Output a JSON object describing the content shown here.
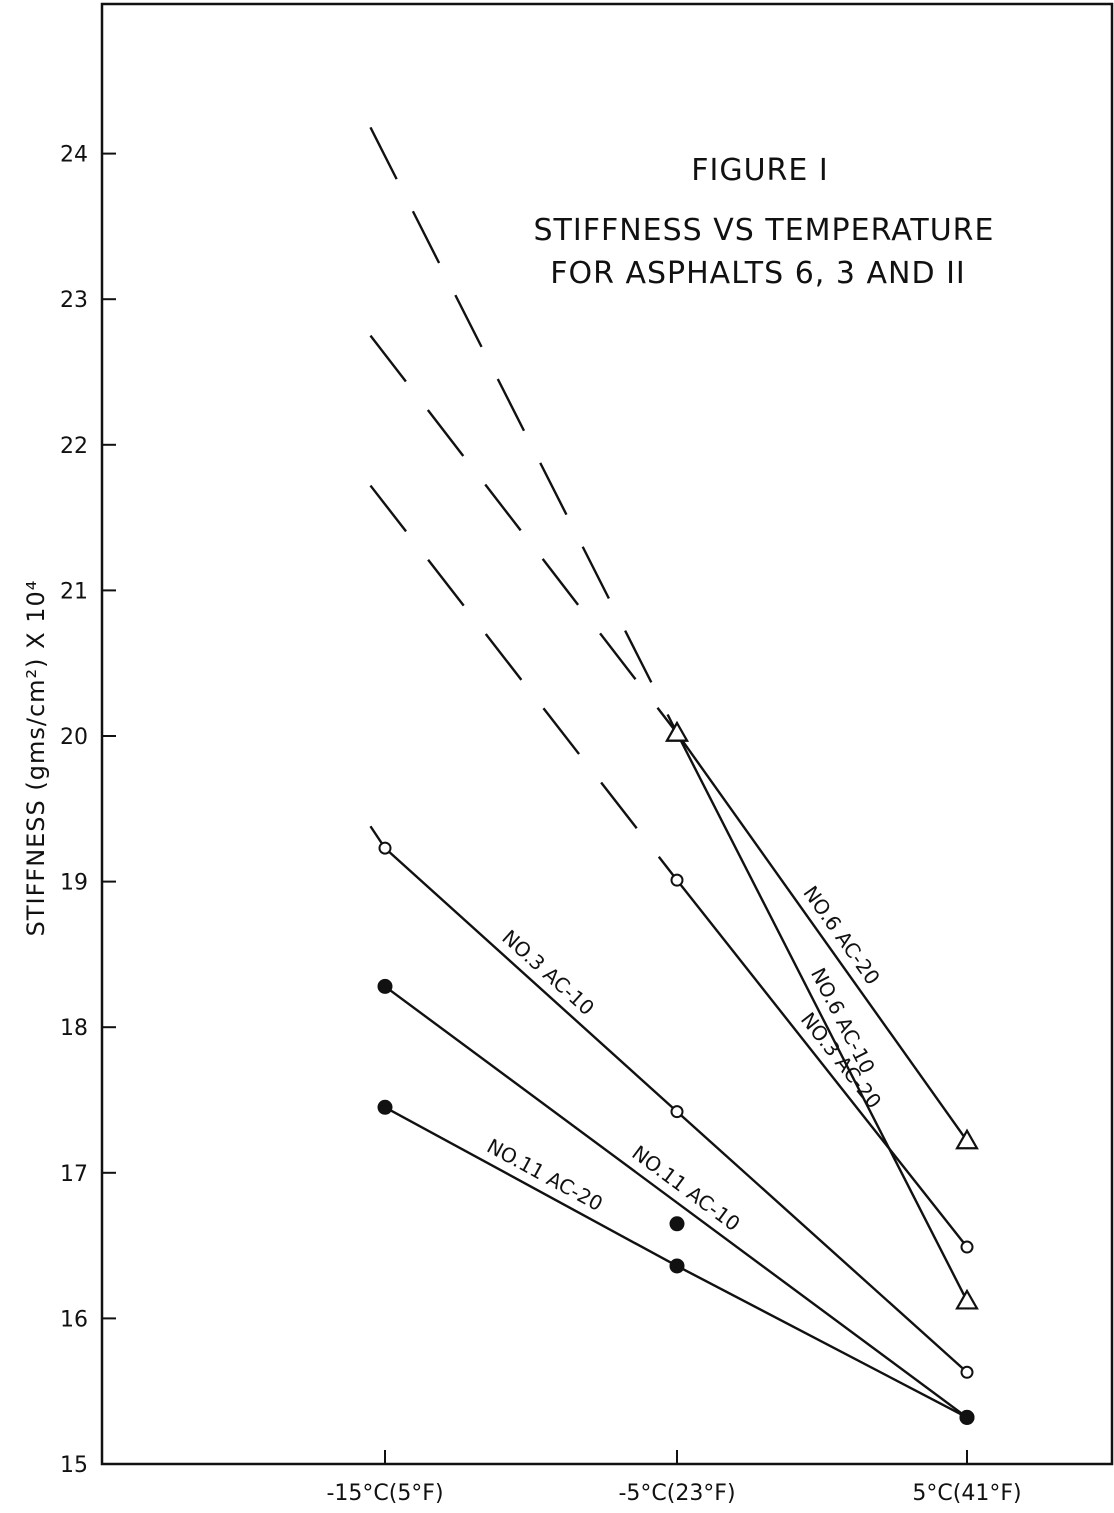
{
  "chart_data": {
    "type": "line",
    "title": "FIGURE I",
    "subtitle": [
      "STIFFNESS VS TEMPERATURE",
      "FOR ASPHALTS 6, 3 AND II"
    ],
    "ylabel": "STIFFNESS (gms/cm²) X 10⁴",
    "xlabel": "",
    "categories": [
      "-15°C(5°F)",
      "-5°C(23°F)",
      "5°C(41°F)"
    ],
    "ylim": [
      15,
      24.7
    ],
    "yticks": [
      15,
      16,
      17,
      18,
      19,
      20,
      21,
      22,
      23,
      24
    ],
    "grid": false,
    "legend": "none",
    "series": [
      {
        "name": "NO.6 AC-20",
        "marker": "triangle",
        "points": [
          [
            1,
            20.02
          ],
          [
            2,
            17.22
          ]
        ],
        "extrapolated": [
          [
            -0.05,
            22.75
          ],
          [
            1,
            20.02
          ]
        ]
      },
      {
        "name": "NO.6 AC-10",
        "marker": "triangle",
        "points": [
          [
            1,
            20.02
          ],
          [
            2,
            16.12
          ]
        ],
        "extrapolated": [
          [
            -0.05,
            24.18
          ],
          [
            1,
            20.02
          ]
        ]
      },
      {
        "name": "NO.3 AC-20",
        "marker": "open-circle",
        "points": [
          [
            1,
            19.01
          ],
          [
            2,
            16.49
          ]
        ],
        "extrapolated": [
          [
            -0.05,
            21.72
          ],
          [
            1,
            19.01
          ]
        ]
      },
      {
        "name": "NO.3 AC-10",
        "marker": "open-circle",
        "points": [
          [
            0,
            19.23
          ],
          [
            1,
            17.42
          ],
          [
            2,
            15.63
          ]
        ],
        "extend_left": [
          -0.05,
          19.38
        ]
      },
      {
        "name": "NO.11 AC-10",
        "marker": "filled-circle",
        "points": [
          [
            0,
            18.28
          ],
          [
            1,
            16.65
          ],
          [
            2,
            15.32
          ]
        ],
        "fit_line": [
          [
            0,
            18.28
          ],
          [
            2,
            15.32
          ]
        ]
      },
      {
        "name": "NO.11 AC-20",
        "marker": "filled-circle",
        "points": [
          [
            0,
            17.45
          ],
          [
            1,
            16.36
          ],
          [
            2,
            15.32
          ]
        ]
      }
    ]
  }
}
